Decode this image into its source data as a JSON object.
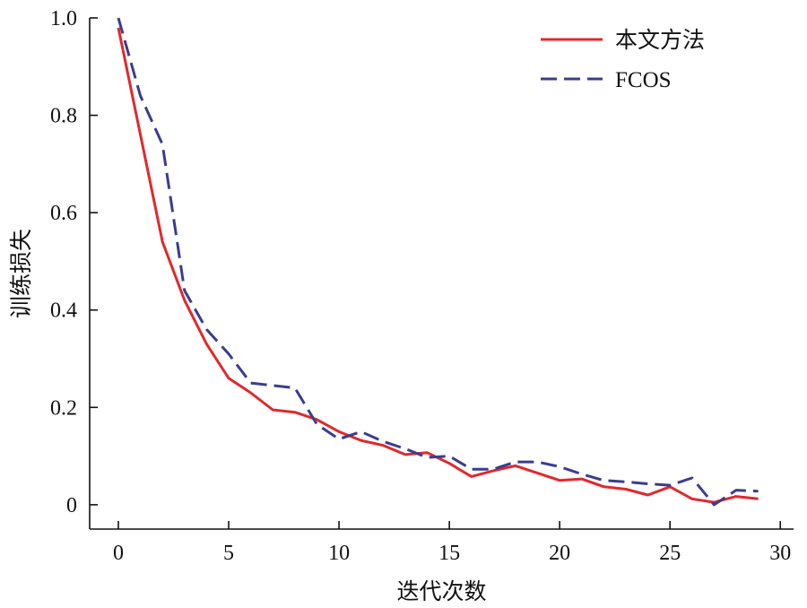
{
  "chart_data": {
    "type": "line",
    "xlabel": "迭代次数",
    "ylabel": "训练损失",
    "xlim": [
      -1.3,
      30.6
    ],
    "ylim": [
      -0.05,
      1.0
    ],
    "xticks": [
      0,
      5,
      10,
      15,
      20,
      25,
      30
    ],
    "yticks": [
      0,
      0.2,
      0.4,
      0.6,
      0.8,
      1.0
    ],
    "xtick_labels": [
      "0",
      "5",
      "10",
      "15",
      "20",
      "25",
      "30"
    ],
    "ytick_labels": [
      "0",
      "0.2",
      "0.4",
      "0.6",
      "0.8",
      "1.0"
    ],
    "grid": false,
    "legend_position": "top-right",
    "series": [
      {
        "name": "本文方法",
        "color": "#e1282d",
        "style": "solid",
        "x": [
          0,
          1,
          2,
          3,
          4,
          5,
          6,
          7,
          8,
          9,
          10,
          11,
          12,
          13,
          14,
          15,
          16,
          17,
          18,
          19,
          20,
          21,
          22,
          23,
          24,
          25,
          26,
          27,
          28,
          29
        ],
        "y": [
          0.98,
          0.76,
          0.54,
          0.42,
          0.33,
          0.26,
          0.23,
          0.195,
          0.19,
          0.175,
          0.15,
          0.132,
          0.122,
          0.103,
          0.107,
          0.085,
          0.058,
          0.07,
          0.08,
          0.065,
          0.05,
          0.053,
          0.037,
          0.032,
          0.02,
          0.037,
          0.012,
          0.005,
          0.017,
          0.012
        ]
      },
      {
        "name": "FCOS",
        "color": "#3a3d8f",
        "style": "dashed",
        "x": [
          0,
          1,
          2,
          3,
          4,
          5,
          6,
          7,
          8,
          9,
          10,
          11,
          12,
          13,
          14,
          15,
          16,
          17,
          18,
          19,
          20,
          21,
          22,
          23,
          24,
          25,
          26,
          27,
          28,
          29
        ],
        "y": [
          1.0,
          0.84,
          0.74,
          0.44,
          0.36,
          0.31,
          0.25,
          0.245,
          0.24,
          0.165,
          0.135,
          0.15,
          0.13,
          0.115,
          0.097,
          0.1,
          0.073,
          0.073,
          0.088,
          0.088,
          0.078,
          0.063,
          0.05,
          0.047,
          0.043,
          0.04,
          0.055,
          0.0,
          0.03,
          0.028
        ]
      }
    ]
  }
}
